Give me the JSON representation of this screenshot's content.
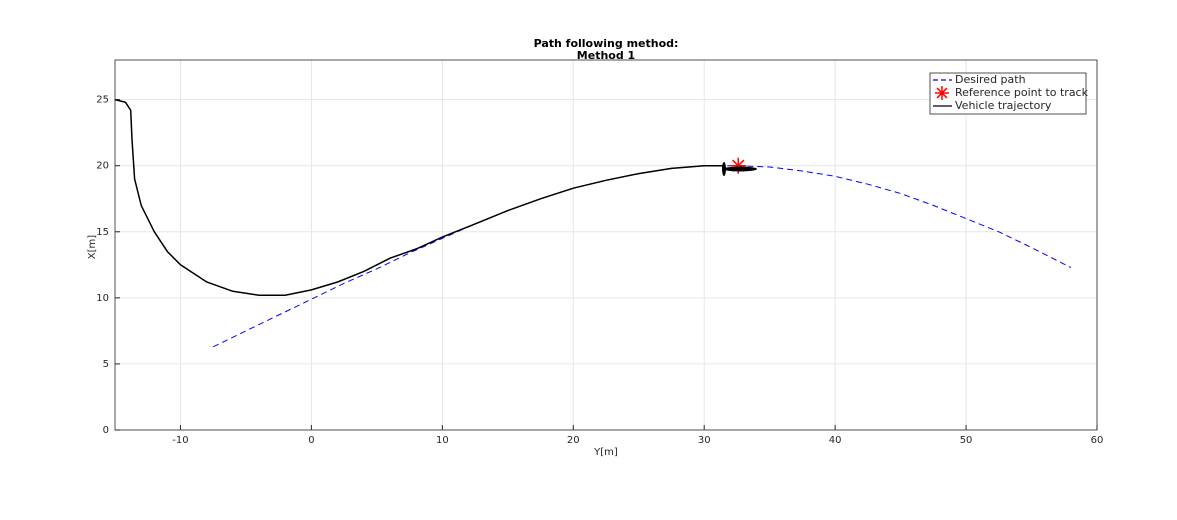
{
  "chart_data": {
    "type": "line",
    "title": [
      "Path following method:",
      "Method 1"
    ],
    "x_label": "Y[m]",
    "y_label": "X[m]",
    "xlim": [
      -15,
      60
    ],
    "xticks": [
      -10,
      0,
      10,
      20,
      30,
      40,
      50,
      60
    ],
    "ylim": [
      0,
      28
    ],
    "yticks": [
      0,
      5,
      10,
      15,
      20,
      25
    ],
    "grid": true,
    "legend": "northeast",
    "series": [
      {
        "name": "Desired path",
        "color": "#0000ff",
        "style": "dashed",
        "x": [
          -7.5,
          -5,
          -2.5,
          0,
          2.5,
          5,
          7.5,
          10,
          12.5,
          15,
          17.5,
          20,
          22.5,
          25,
          27.5,
          30,
          32.5,
          35,
          37.5,
          40,
          42.5,
          45,
          47.5,
          50,
          52.5,
          55,
          58
        ],
        "values": [
          6.3,
          7.5,
          8.7,
          9.9,
          11.1,
          12.2,
          13.4,
          14.5,
          15.6,
          16.6,
          17.5,
          18.3,
          18.9,
          19.4,
          19.8,
          20.0,
          20.0,
          19.9,
          19.6,
          19.2,
          18.6,
          17.9,
          17.0,
          16.0,
          15.0,
          13.8,
          12.3
        ]
      },
      {
        "name": "Reference point to track",
        "color": "#ff0000",
        "style": "asterisk",
        "x": [
          32.6
        ],
        "values": [
          20
        ]
      },
      {
        "name": "Vehicle trajectory",
        "color": "#000000",
        "style": "solid",
        "x": [
          -15,
          -14.2,
          -13.8,
          -13.7,
          -13.5,
          -13,
          -12,
          -11,
          -10,
          -8,
          -6,
          -4,
          -2,
          0,
          2,
          4,
          6,
          8,
          10,
          12.5,
          15,
          17.5,
          20,
          22.5,
          25,
          27.5,
          30,
          31.5
        ],
        "values": [
          25,
          24.8,
          24.2,
          22,
          19,
          17,
          15,
          13.5,
          12.5,
          11.2,
          10.5,
          10.2,
          10.2,
          10.6,
          11.2,
          12,
          13,
          13.7,
          14.6,
          15.6,
          16.6,
          17.5,
          18.3,
          18.9,
          19.4,
          19.8,
          20,
          20
        ]
      }
    ]
  }
}
